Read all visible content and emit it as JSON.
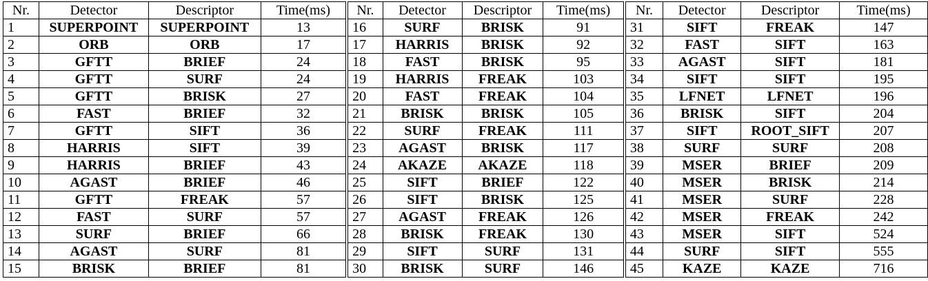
{
  "headers": [
    "Nr.",
    "Detector",
    "Descriptor",
    "Time(ms)"
  ],
  "rows": [
    [
      [
        "1",
        "SUPERPOINT",
        "SUPERPOINT",
        "13"
      ],
      [
        "16",
        "SURF",
        "BRISK",
        "91"
      ],
      [
        "31",
        "SIFT",
        "FREAK",
        "147"
      ]
    ],
    [
      [
        "2",
        "ORB",
        "ORB",
        "17"
      ],
      [
        "17",
        "HARRIS",
        "BRISK",
        "92"
      ],
      [
        "32",
        "FAST",
        "SIFT",
        "163"
      ]
    ],
    [
      [
        "3",
        "GFTT",
        "BRIEF",
        "24"
      ],
      [
        "18",
        "FAST",
        "BRISK",
        "95"
      ],
      [
        "33",
        "AGAST",
        "SIFT",
        "181"
      ]
    ],
    [
      [
        "4",
        "GFTT",
        "SURF",
        "24"
      ],
      [
        "19",
        "HARRIS",
        "FREAK",
        "103"
      ],
      [
        "34",
        "SIFT",
        "SIFT",
        "195"
      ]
    ],
    [
      [
        "5",
        "GFTT",
        "BRISK",
        "27"
      ],
      [
        "20",
        "FAST",
        "FREAK",
        "104"
      ],
      [
        "35",
        "LFNET",
        "LFNET",
        "196"
      ]
    ],
    [
      [
        "6",
        "FAST",
        "BRIEF",
        "32"
      ],
      [
        "21",
        "BRISK",
        "BRISK",
        "105"
      ],
      [
        "36",
        "BRISK",
        "SIFT",
        "204"
      ]
    ],
    [
      [
        "7",
        "GFTT",
        "SIFT",
        "36"
      ],
      [
        "22",
        "SURF",
        "FREAK",
        "111"
      ],
      [
        "37",
        "SIFT",
        "ROOT_SIFT",
        "207"
      ]
    ],
    [
      [
        "8",
        "HARRIS",
        "SIFT",
        "39"
      ],
      [
        "23",
        "AGAST",
        "BRISK",
        "117"
      ],
      [
        "38",
        "SURF",
        "SURF",
        "208"
      ]
    ],
    [
      [
        "9",
        "HARRIS",
        "BRIEF",
        "43"
      ],
      [
        "24",
        "AKAZE",
        "AKAZE",
        "118"
      ],
      [
        "39",
        "MSER",
        "BRIEF",
        "209"
      ]
    ],
    [
      [
        "10",
        "AGAST",
        "BRIEF",
        "46"
      ],
      [
        "25",
        "SIFT",
        "BRIEF",
        "122"
      ],
      [
        "40",
        "MSER",
        "BRISK",
        "214"
      ]
    ],
    [
      [
        "11",
        "GFTT",
        "FREAK",
        "57"
      ],
      [
        "26",
        "SIFT",
        "BRISK",
        "125"
      ],
      [
        "41",
        "MSER",
        "SURF",
        "228"
      ]
    ],
    [
      [
        "12",
        "FAST",
        "SURF",
        "57"
      ],
      [
        "27",
        "AGAST",
        "FREAK",
        "126"
      ],
      [
        "42",
        "MSER",
        "FREAK",
        "242"
      ]
    ],
    [
      [
        "13",
        "SURF",
        "BRIEF",
        "66"
      ],
      [
        "28",
        "BRISK",
        "FREAK",
        "130"
      ],
      [
        "43",
        "MSER",
        "SIFT",
        "524"
      ]
    ],
    [
      [
        "14",
        "AGAST",
        "SURF",
        "81"
      ],
      [
        "29",
        "SIFT",
        "SURF",
        "131"
      ],
      [
        "44",
        "SURF",
        "SIFT",
        "555"
      ]
    ],
    [
      [
        "15",
        "BRISK",
        "BRIEF",
        "81"
      ],
      [
        "30",
        "BRISK",
        "SURF",
        "146"
      ],
      [
        "45",
        "KAZE",
        "KAZE",
        "716"
      ]
    ]
  ]
}
